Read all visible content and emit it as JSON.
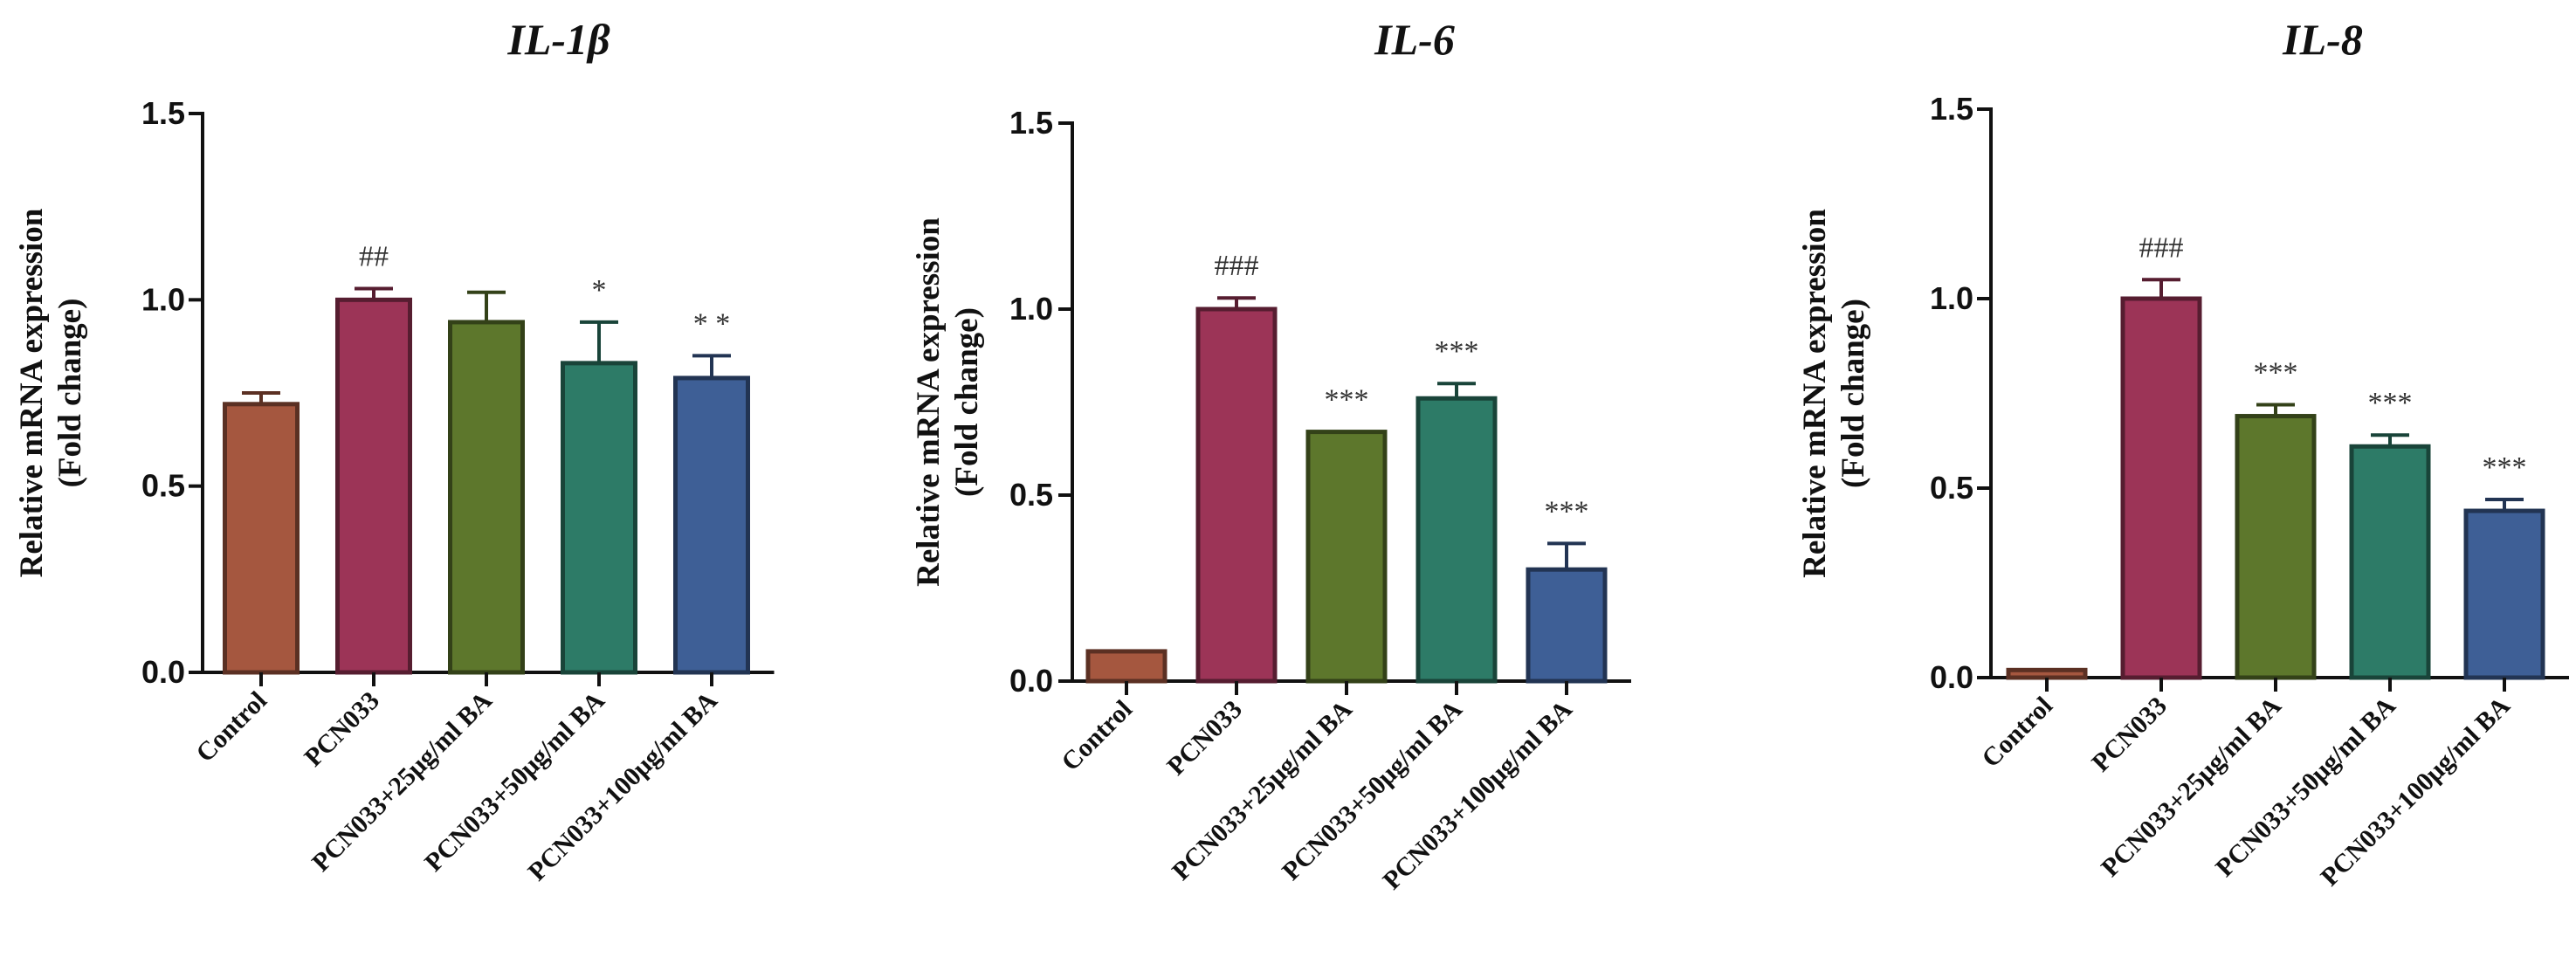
{
  "chart_data": [
    {
      "type": "bar",
      "title": "IL-1β",
      "ylabel": [
        "Relative mRNA expression",
        "(Fold change)"
      ],
      "ylim": [
        0,
        1.5
      ],
      "yticks": [
        "0.0",
        "0.5",
        "1.0",
        "1.5"
      ],
      "categories": [
        "Control",
        "PCN033",
        "PCN033+25μg/ml BA",
        "PCN033+50μg/ml BA",
        "PCN033+100μg/ml BA"
      ],
      "values": [
        0.72,
        1.0,
        0.94,
        0.83,
        0.79
      ],
      "errors": [
        0.03,
        0.03,
        0.08,
        0.11,
        0.06
      ],
      "annotations": [
        "",
        "##",
        "",
        "*",
        "* *"
      ],
      "colors": [
        "#A5573F",
        "#9C3457",
        "#5D772C",
        "#2D7B67",
        "#3E5F96"
      ]
    },
    {
      "type": "bar",
      "title": "IL-6",
      "ylabel": [
        "Relative mRNA expression",
        "(Fold change)"
      ],
      "ylim": [
        0,
        1.5
      ],
      "yticks": [
        "0.0",
        "0.5",
        "1.0",
        "1.5"
      ],
      "categories": [
        "Control",
        "PCN033",
        "PCN033+25μg/ml BA",
        "PCN033+50μg/ml BA",
        "PCN033+100μg/ml BA"
      ],
      "values": [
        0.08,
        1.0,
        0.67,
        0.76,
        0.3
      ],
      "errors": [
        0.0,
        0.03,
        0.0,
        0.04,
        0.07
      ],
      "annotations": [
        "",
        "###",
        "***",
        "***",
        "***"
      ],
      "colors": [
        "#A5573F",
        "#9C3457",
        "#5D772C",
        "#2D7B67",
        "#3E5F96"
      ]
    },
    {
      "type": "bar",
      "title": "IL-8",
      "ylabel": [
        "Relative mRNA expression",
        "(Fold change)"
      ],
      "ylim": [
        0,
        1.5
      ],
      "yticks": [
        "0.0",
        "0.5",
        "1.0",
        "1.5"
      ],
      "categories": [
        "Control",
        "PCN033",
        "PCN033+25μg/ml BA",
        "PCN033+50μg/ml BA",
        "PCN033+100μg/ml BA"
      ],
      "values": [
        0.02,
        1.0,
        0.69,
        0.61,
        0.44
      ],
      "errors": [
        0.0,
        0.05,
        0.03,
        0.03,
        0.03
      ],
      "annotations": [
        "",
        "###",
        "***",
        "***",
        "***"
      ],
      "colors": [
        "#A5573F",
        "#9C3457",
        "#5D772C",
        "#2D7B67",
        "#3E5F96"
      ]
    }
  ]
}
